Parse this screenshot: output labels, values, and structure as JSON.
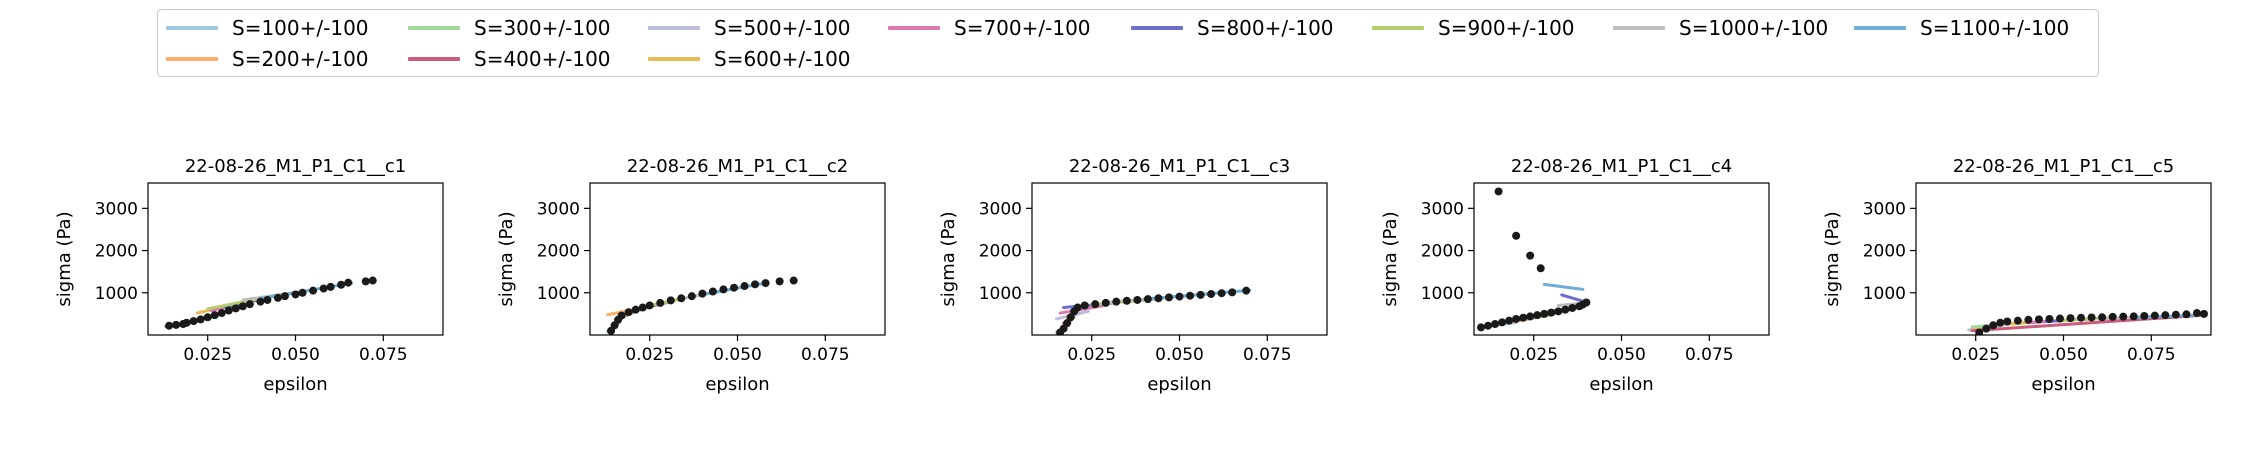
{
  "colors": {
    "S=100+/-100": "#9ecae1",
    "S=200+/-100": "#fdae6b",
    "S=300+/-100": "#a1d99b",
    "S=400+/-100": "#cb5c7a",
    "S=500+/-100": "#bcbddc",
    "S=600+/-100": "#e7ba52",
    "S=700+/-100": "#de77ae",
    "S=800+/-100": "#6b6ecf",
    "S=900+/-100": "#b5cf6b",
    "S=1000+/-100": "#bdbdbd",
    "S=1100+/-100": "#6baed6",
    "points": "#1a1a1a"
  },
  "legend": {
    "entries": [
      "S=100+/-100",
      "S=300+/-100",
      "S=500+/-100",
      "S=700+/-100",
      "S=800+/-100",
      "S=900+/-100",
      "S=1000+/-100",
      "S=1100+/-100",
      "S=200+/-100",
      "S=400+/-100",
      "S=600+/-100"
    ],
    "placement": "top-center"
  },
  "chart_data": [
    {
      "type": "scatter",
      "title": "22-08-26_M1_P1_C1__c1",
      "xlabel": "epsilon",
      "ylabel": "sigma (Pa)",
      "xlim": [
        0.008,
        0.092
      ],
      "ylim": [
        0,
        3600
      ],
      "xticks": [
        "0.025",
        "0.050",
        "0.075"
      ],
      "yticks": [
        "1000",
        "2000",
        "3000"
      ],
      "points": [
        [
          0.014,
          220
        ],
        [
          0.016,
          240
        ],
        [
          0.018,
          260
        ],
        [
          0.019,
          290
        ],
        [
          0.021,
          330
        ],
        [
          0.023,
          370
        ],
        [
          0.025,
          420
        ],
        [
          0.027,
          470
        ],
        [
          0.029,
          520
        ],
        [
          0.031,
          580
        ],
        [
          0.033,
          630
        ],
        [
          0.035,
          680
        ],
        [
          0.037,
          730
        ],
        [
          0.04,
          790
        ],
        [
          0.042,
          830
        ],
        [
          0.045,
          880
        ],
        [
          0.047,
          920
        ],
        [
          0.05,
          960
        ],
        [
          0.052,
          1000
        ],
        [
          0.055,
          1050
        ],
        [
          0.058,
          1100
        ],
        [
          0.06,
          1140
        ],
        [
          0.063,
          1190
        ],
        [
          0.065,
          1240
        ],
        [
          0.07,
          1270
        ],
        [
          0.072,
          1290
        ]
      ],
      "series": [
        {
          "name": "S=100+/-100",
          "x": [
            0.013,
            0.018
          ],
          "y": [
            200,
            250
          ]
        },
        {
          "name": "S=200+/-100",
          "x": [
            0.017,
            0.022
          ],
          "y": [
            240,
            320
          ]
        },
        {
          "name": "S=300+/-100",
          "x": [
            0.02,
            0.026
          ],
          "y": [
            300,
            420
          ]
        },
        {
          "name": "S=400+/-100",
          "x": [
            0.022,
            0.028
          ],
          "y": [
            360,
            480
          ]
        },
        {
          "name": "S=500+/-100",
          "x": [
            0.024,
            0.031
          ],
          "y": [
            420,
            580
          ]
        },
        {
          "name": "S=600+/-100",
          "x": [
            0.022,
            0.034
          ],
          "y": [
            520,
            750
          ]
        },
        {
          "name": "S=700+/-100",
          "x": [
            0.026,
            0.038
          ],
          "y": [
            580,
            820
          ]
        },
        {
          "name": "S=800+/-100",
          "x": [
            0.03,
            0.042
          ],
          "y": [
            660,
            880
          ]
        },
        {
          "name": "S=900+/-100",
          "x": [
            0.025,
            0.045
          ],
          "y": [
            620,
            950
          ]
        },
        {
          "name": "S=1000+/-100",
          "x": [
            0.035,
            0.055
          ],
          "y": [
            830,
            1070
          ]
        },
        {
          "name": "S=1100+/-100",
          "x": [
            0.04,
            0.066
          ],
          "y": [
            860,
            1230
          ]
        }
      ]
    },
    {
      "type": "scatter",
      "title": "22-08-26_M1_P1_C1__c2",
      "xlabel": "epsilon",
      "ylabel": "sigma (Pa)",
      "xlim": [
        0.008,
        0.092
      ],
      "ylim": [
        0,
        3600
      ],
      "xticks": [
        "0.025",
        "0.050",
        "0.075"
      ],
      "yticks": [
        "1000",
        "2000",
        "3000"
      ],
      "points": [
        [
          0.014,
          100
        ],
        [
          0.015,
          230
        ],
        [
          0.016,
          360
        ],
        [
          0.017,
          460
        ],
        [
          0.019,
          540
        ],
        [
          0.021,
          600
        ],
        [
          0.023,
          650
        ],
        [
          0.025,
          700
        ],
        [
          0.028,
          760
        ],
        [
          0.031,
          820
        ],
        [
          0.034,
          870
        ],
        [
          0.037,
          920
        ],
        [
          0.04,
          980
        ],
        [
          0.043,
          1030
        ],
        [
          0.046,
          1080
        ],
        [
          0.049,
          1120
        ],
        [
          0.052,
          1160
        ],
        [
          0.055,
          1200
        ],
        [
          0.058,
          1230
        ],
        [
          0.062,
          1270
        ],
        [
          0.066,
          1290
        ]
      ],
      "series": [
        {
          "name": "S=100+/-100",
          "x": [
            0.013,
            0.016
          ],
          "y": [
            80,
            250
          ]
        },
        {
          "name": "S=200+/-100",
          "x": [
            0.013,
            0.03
          ],
          "y": [
            480,
            760
          ]
        },
        {
          "name": "S=300+/-100",
          "x": [
            0.015,
            0.02
          ],
          "y": [
            300,
            560
          ]
        },
        {
          "name": "S=400+/-100",
          "x": [
            0.016,
            0.022
          ],
          "y": [
            380,
            600
          ]
        },
        {
          "name": "S=500+/-100",
          "x": [
            0.017,
            0.024
          ],
          "y": [
            430,
            650
          ]
        },
        {
          "name": "S=600+/-100",
          "x": [
            0.018,
            0.026
          ],
          "y": [
            470,
            700
          ]
        },
        {
          "name": "S=700+/-100",
          "x": [
            0.019,
            0.028
          ],
          "y": [
            520,
            740
          ]
        },
        {
          "name": "S=800+/-100",
          "x": [
            0.022,
            0.034
          ],
          "y": [
            620,
            860
          ]
        },
        {
          "name": "S=900+/-100",
          "x": [
            0.026,
            0.04
          ],
          "y": [
            720,
            960
          ]
        },
        {
          "name": "S=1000+/-100",
          "x": [
            0.034,
            0.05
          ],
          "y": [
            860,
            1110
          ]
        },
        {
          "name": "S=1100+/-100",
          "x": [
            0.04,
            0.058
          ],
          "y": [
            960,
            1230
          ]
        }
      ]
    },
    {
      "type": "scatter",
      "title": "22-08-26_M1_P1_C1__c3",
      "xlabel": "epsilon",
      "ylabel": "sigma (Pa)",
      "xlim": [
        0.008,
        0.092
      ],
      "ylim": [
        0,
        3600
      ],
      "xticks": [
        "0.025",
        "0.050",
        "0.075"
      ],
      "yticks": [
        "1000",
        "2000",
        "3000"
      ],
      "points": [
        [
          0.016,
          60
        ],
        [
          0.017,
          150
        ],
        [
          0.018,
          280
        ],
        [
          0.019,
          420
        ],
        [
          0.02,
          560
        ],
        [
          0.021,
          650
        ],
        [
          0.023,
          700
        ],
        [
          0.026,
          730
        ],
        [
          0.029,
          760
        ],
        [
          0.032,
          790
        ],
        [
          0.035,
          810
        ],
        [
          0.038,
          830
        ],
        [
          0.041,
          850
        ],
        [
          0.044,
          870
        ],
        [
          0.047,
          890
        ],
        [
          0.05,
          910
        ],
        [
          0.053,
          930
        ],
        [
          0.056,
          950
        ],
        [
          0.059,
          970
        ],
        [
          0.062,
          990
        ],
        [
          0.065,
          1010
        ],
        [
          0.069,
          1050
        ]
      ],
      "series": [
        {
          "name": "S=100+/-100",
          "x": [
            0.015,
            0.018
          ],
          "y": [
            60,
            200
          ]
        },
        {
          "name": "S=200+/-100",
          "x": [
            0.016,
            0.019
          ],
          "y": [
            120,
            320
          ]
        },
        {
          "name": "S=300+/-100",
          "x": [
            0.017,
            0.02
          ],
          "y": [
            200,
            420
          ]
        },
        {
          "name": "S=400+/-100",
          "x": [
            0.017,
            0.021
          ],
          "y": [
            280,
            520
          ]
        },
        {
          "name": "S=500+/-100",
          "x": [
            0.015,
            0.024
          ],
          "y": [
            380,
            560
          ]
        },
        {
          "name": "S=600+/-100",
          "x": [
            0.018,
            0.022
          ],
          "y": [
            420,
            640
          ]
        },
        {
          "name": "S=700+/-100",
          "x": [
            0.016,
            0.028
          ],
          "y": [
            520,
            690
          ]
        },
        {
          "name": "S=800+/-100",
          "x": [
            0.017,
            0.032
          ],
          "y": [
            650,
            760
          ]
        },
        {
          "name": "S=900+/-100",
          "x": [
            0.025,
            0.045
          ],
          "y": [
            720,
            860
          ]
        },
        {
          "name": "S=1000+/-100",
          "x": [
            0.03,
            0.06
          ],
          "y": [
            780,
            980
          ]
        },
        {
          "name": "S=1100+/-100",
          "x": [
            0.04,
            0.07
          ],
          "y": [
            850,
            1060
          ]
        }
      ]
    },
    {
      "type": "scatter",
      "title": "22-08-26_M1_P1_C1__c4",
      "xlabel": "epsilon",
      "ylabel": "sigma (Pa)",
      "xlim": [
        0.008,
        0.092
      ],
      "ylim": [
        0,
        3600
      ],
      "xticks": [
        "0.025",
        "0.050",
        "0.075"
      ],
      "yticks": [
        "1000",
        "2000",
        "3000"
      ],
      "points": [
        [
          0.015,
          3400
        ],
        [
          0.02,
          2350
        ],
        [
          0.024,
          1880
        ],
        [
          0.027,
          1580
        ],
        [
          0.01,
          180
        ],
        [
          0.012,
          220
        ],
        [
          0.014,
          260
        ],
        [
          0.016,
          300
        ],
        [
          0.018,
          340
        ],
        [
          0.02,
          380
        ],
        [
          0.022,
          410
        ],
        [
          0.024,
          440
        ],
        [
          0.026,
          470
        ],
        [
          0.028,
          500
        ],
        [
          0.03,
          530
        ],
        [
          0.032,
          560
        ],
        [
          0.034,
          600
        ],
        [
          0.036,
          640
        ],
        [
          0.038,
          680
        ],
        [
          0.039,
          720
        ],
        [
          0.04,
          770
        ]
      ],
      "series": [
        {
          "name": "S=100+/-100",
          "x": [
            0.01,
            0.02
          ],
          "y": [
            180,
            300
          ]
        },
        {
          "name": "S=200+/-100",
          "x": [
            0.012,
            0.024
          ],
          "y": [
            230,
            380
          ]
        },
        {
          "name": "S=300+/-100",
          "x": [
            0.014,
            0.027
          ],
          "y": [
            270,
            430
          ]
        },
        {
          "name": "S=400+/-100",
          "x": [
            0.018,
            0.03
          ],
          "y": [
            320,
            480
          ]
        },
        {
          "name": "S=500+/-100",
          "x": [
            0.022,
            0.032
          ],
          "y": [
            370,
            530
          ]
        },
        {
          "name": "S=600+/-100",
          "x": [
            0.026,
            0.035
          ],
          "y": [
            420,
            580
          ]
        },
        {
          "name": "S=700+/-100",
          "x": [
            0.03,
            0.039
          ],
          "y": [
            500,
            720
          ]
        },
        {
          "name": "S=800+/-100",
          "x": [
            0.033,
            0.039
          ],
          "y": [
            950,
            800
          ]
        },
        {
          "name": "S=900+/-100",
          "x": [
            0.028,
            0.038
          ],
          "y": [
            540,
            680
          ]
        },
        {
          "name": "S=1000+/-100",
          "x": [
            0.032,
            0.04
          ],
          "y": [
            700,
            760
          ]
        },
        {
          "name": "S=1100+/-100",
          "x": [
            0.028,
            0.039
          ],
          "y": [
            1200,
            1080
          ]
        }
      ]
    },
    {
      "type": "scatter",
      "title": "22-08-26_M1_P1_C1__c5",
      "xlabel": "epsilon",
      "ylabel": "sigma (Pa)",
      "xlim": [
        0.008,
        0.092
      ],
      "ylim": [
        0,
        3600
      ],
      "xticks": [
        "0.025",
        "0.050",
        "0.075"
      ],
      "yticks": [
        "1000",
        "2000",
        "3000"
      ],
      "points": [
        [
          0.026,
          60
        ],
        [
          0.028,
          150
        ],
        [
          0.03,
          230
        ],
        [
          0.032,
          290
        ],
        [
          0.034,
          320
        ],
        [
          0.037,
          340
        ],
        [
          0.04,
          360
        ],
        [
          0.043,
          370
        ],
        [
          0.046,
          380
        ],
        [
          0.049,
          390
        ],
        [
          0.052,
          400
        ],
        [
          0.055,
          410
        ],
        [
          0.058,
          415
        ],
        [
          0.061,
          420
        ],
        [
          0.064,
          430
        ],
        [
          0.067,
          435
        ],
        [
          0.07,
          440
        ],
        [
          0.073,
          450
        ],
        [
          0.076,
          460
        ],
        [
          0.079,
          470
        ],
        [
          0.082,
          480
        ],
        [
          0.085,
          490
        ],
        [
          0.088,
          520
        ],
        [
          0.09,
          500
        ]
      ],
      "series": [
        {
          "name": "S=100+/-100",
          "x": [
            0.023,
            0.032
          ],
          "y": [
            120,
            220
          ]
        },
        {
          "name": "S=200+/-100",
          "x": [
            0.024,
            0.034
          ],
          "y": [
            140,
            260
          ]
        },
        {
          "name": "S=300+/-100",
          "x": [
            0.024,
            0.04
          ],
          "y": [
            190,
            300
          ]
        },
        {
          "name": "S=400+/-100",
          "x": [
            0.024,
            0.09
          ],
          "y": [
            100,
            470
          ]
        },
        {
          "name": "S=500+/-100",
          "x": [
            0.03,
            0.045
          ],
          "y": [
            230,
            330
          ]
        },
        {
          "name": "S=600+/-100",
          "x": [
            0.035,
            0.05
          ],
          "y": [
            260,
            350
          ]
        },
        {
          "name": "S=700+/-100",
          "x": [
            0.04,
            0.055
          ],
          "y": [
            290,
            370
          ]
        },
        {
          "name": "S=800+/-100",
          "x": [
            0.045,
            0.06
          ],
          "y": [
            320,
            390
          ]
        },
        {
          "name": "S=900+/-100",
          "x": [
            0.05,
            0.065
          ],
          "y": [
            340,
            410
          ]
        },
        {
          "name": "S=1000+/-100",
          "x": [
            0.06,
            0.075
          ],
          "y": [
            380,
            440
          ]
        },
        {
          "name": "S=1100+/-100",
          "x": [
            0.07,
            0.088
          ],
          "y": [
            410,
            470
          ]
        }
      ]
    }
  ]
}
